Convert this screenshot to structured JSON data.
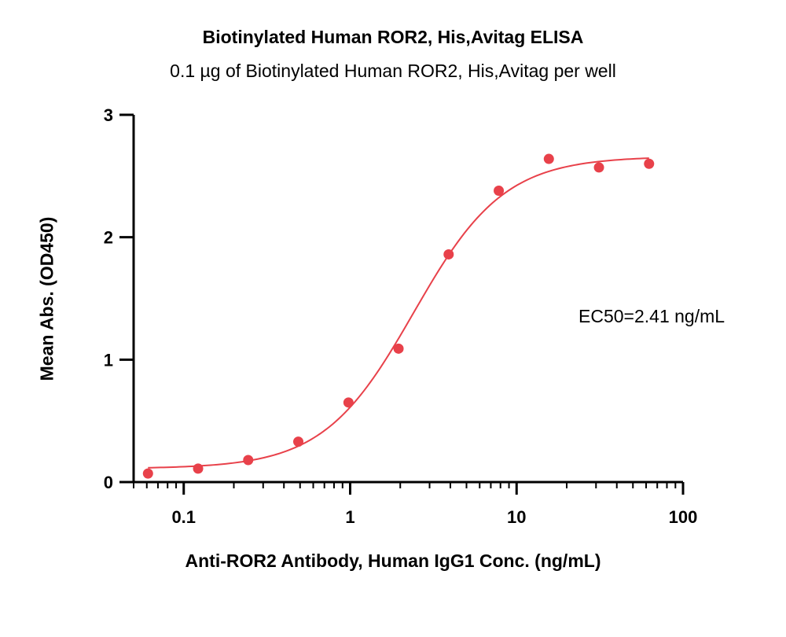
{
  "chart_data": {
    "type": "scatter",
    "title": "Biotinylated Human ROR2, His,Avitag ELISA",
    "subtitle": "0.1 µg of Biotinylated Human ROR2, His,Avitag per well",
    "xlabel": "Anti-ROR2 Antibody, Human IgG1 Conc. (ng/mL)",
    "ylabel": "Mean Abs. (OD450)",
    "x_scale": "log",
    "xlim": [
      0.05,
      100
    ],
    "ylim": [
      0,
      3
    ],
    "x_ticks": [
      0.1,
      1,
      10,
      100
    ],
    "x_tick_labels": [
      "0.1",
      "1",
      "10",
      "100"
    ],
    "y_ticks": [
      0,
      1,
      2,
      3
    ],
    "y_tick_labels": [
      "0",
      "1",
      "2",
      "3"
    ],
    "annotation": "EC50=2.41 ng/mL",
    "color": "#e8414a",
    "series": [
      {
        "x": [
          0.061,
          0.122,
          0.244,
          0.488,
          0.977,
          1.953,
          3.906,
          7.813,
          15.625,
          31.25,
          62.5
        ],
        "y": [
          0.07,
          0.11,
          0.18,
          0.33,
          0.65,
          1.09,
          1.86,
          2.38,
          2.64,
          2.57,
          2.6
        ]
      }
    ],
    "fit": {
      "model": "4PL",
      "bottom": 0.11,
      "top": 2.66,
      "ec50": 2.41,
      "hill": 1.6,
      "x_range": [
        0.061,
        62.5
      ]
    }
  }
}
